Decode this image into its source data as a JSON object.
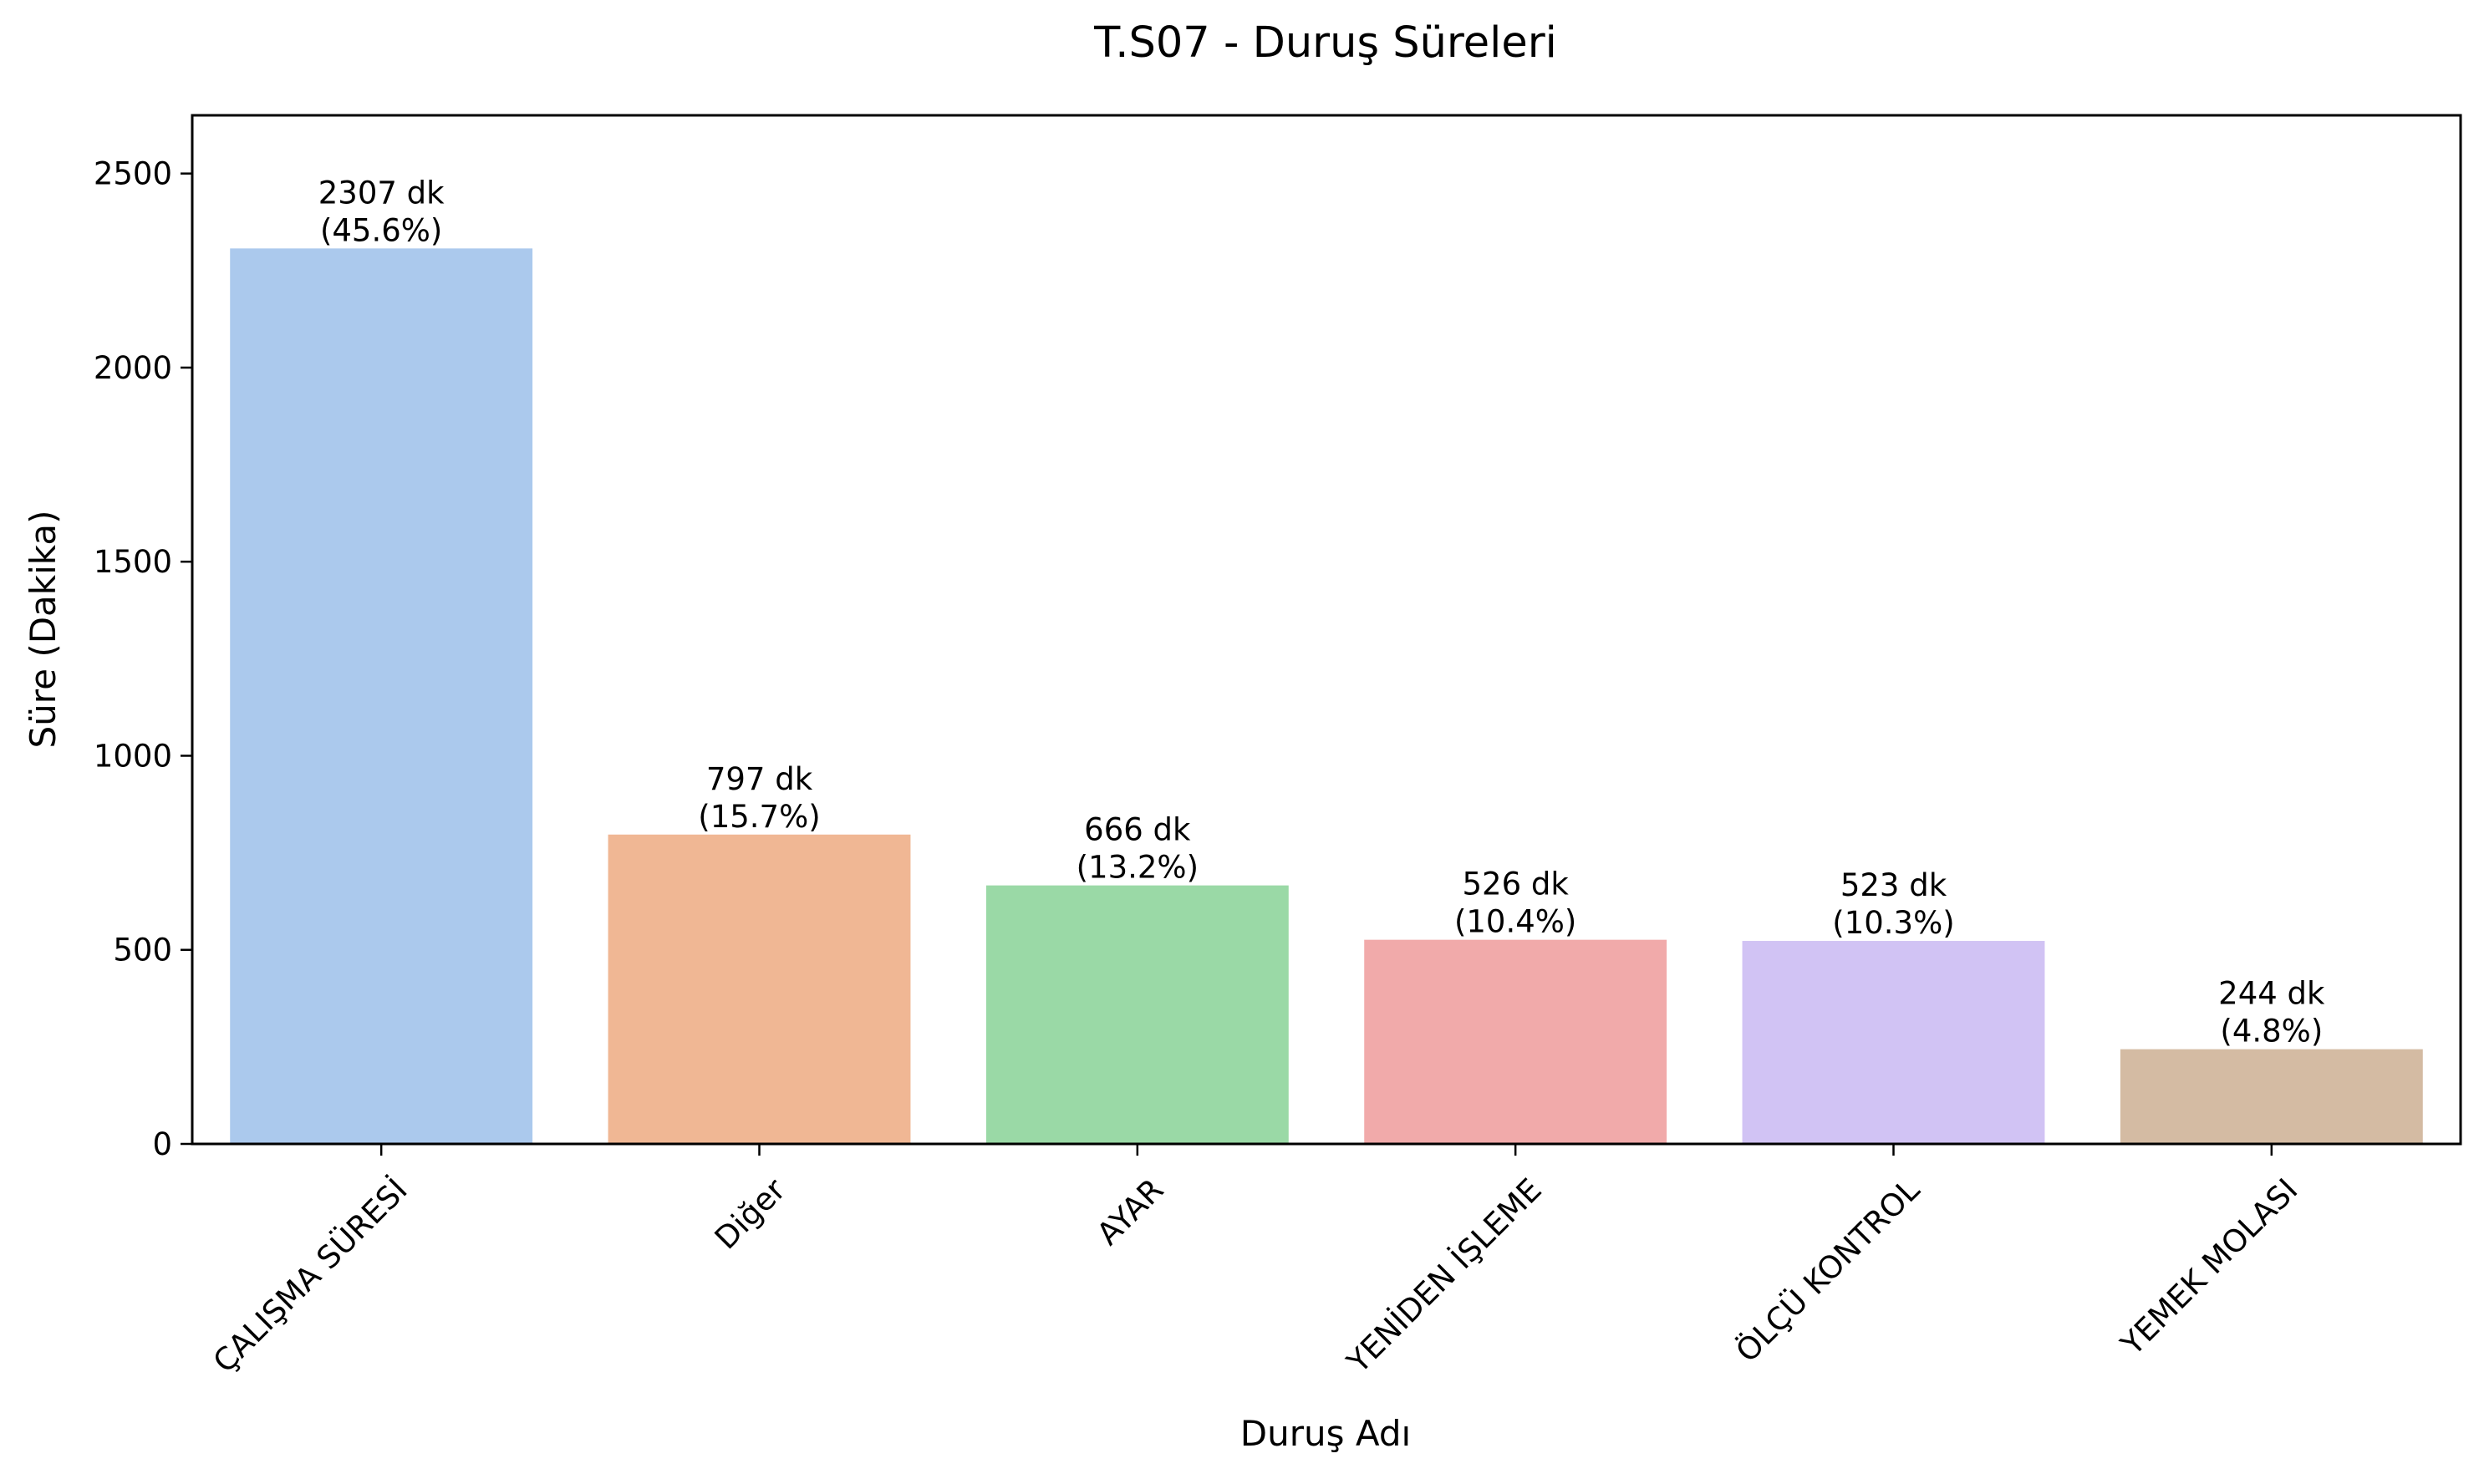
{
  "chart_data": {
    "type": "bar",
    "title": "T.S07 - Duruş Süreleri",
    "xlabel": "Duruş Adı",
    "ylabel": "Süre (Dakika)",
    "categories": [
      "ÇALIŞMA SÜRESİ",
      "Diğer",
      "AYAR",
      "YENİDEN İŞLEME",
      "ÖLÇÜ KONTROL",
      "YEMEK MOLASI"
    ],
    "values": [
      2307,
      797,
      666,
      526,
      523,
      244
    ],
    "value_labels": [
      "2307 dk",
      "797 dk",
      "666 dk",
      "526 dk",
      "523 dk",
      "244 dk"
    ],
    "percent_labels": [
      "(45.6%)",
      "(15.7%)",
      "(13.2%)",
      "(10.4%)",
      "(10.3%)",
      "(4.8%)"
    ],
    "colors": [
      "#abc9ed",
      "#f0b794",
      "#9ad9a6",
      "#f1aaaa",
      "#d1c3f4",
      "#d4bba3"
    ],
    "ylim": [
      0,
      2650
    ],
    "yticks": [
      0,
      500,
      1000,
      1500,
      2000,
      2500
    ],
    "ytick_labels": [
      "0",
      "500",
      "1000",
      "1500",
      "2000",
      "2500"
    ],
    "grid": false,
    "legend": "none"
  }
}
